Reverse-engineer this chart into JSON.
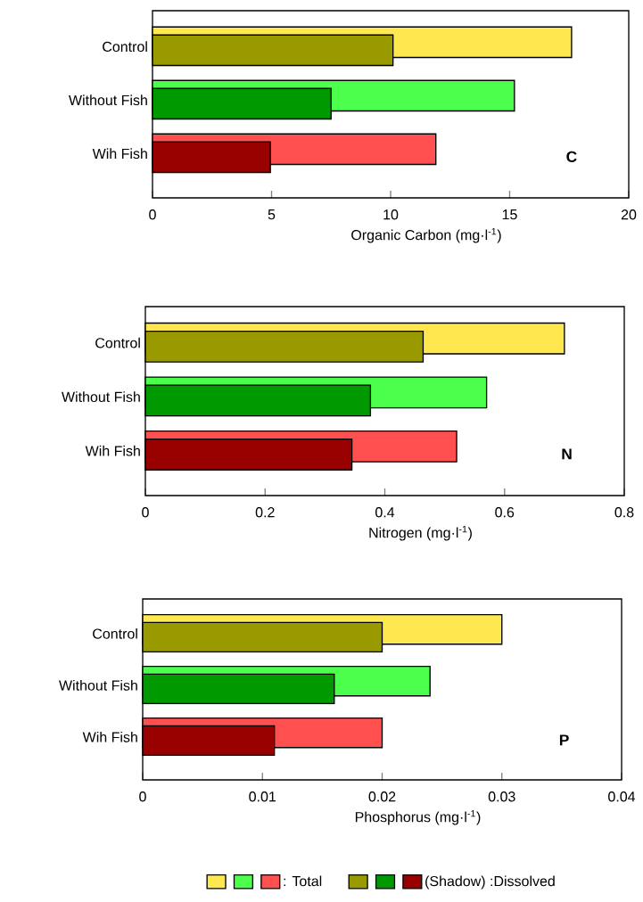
{
  "chart_data": [
    {
      "type": "bar",
      "orientation": "horizontal",
      "categories": [
        "Control",
        "Without Fish",
        "Wih Fish"
      ],
      "xlabel": "Organic Carbon  (mg·l$^{-1}$)",
      "xlim": [
        0,
        20
      ],
      "xticks": [
        0,
        5,
        10,
        15,
        20
      ],
      "annotations": [
        "C"
      ],
      "series": [
        {
          "colors": [
            "#ffe84f",
            "#4dff4d",
            "#ff4f4f"
          ],
          "values": [
            17.6,
            15.2,
            11.9
          ]
        },
        {
          "colors": [
            "#999900",
            "#009900",
            "#990000"
          ],
          "values": [
            10.1,
            7.5,
            4.95
          ]
        }
      ]
    },
    {
      "type": "bar",
      "orientation": "horizontal",
      "categories": [
        "Control",
        "Without Fish",
        "Wih Fish"
      ],
      "xlabel": "Nitrogen        (mg·l$^{-1}$)",
      "xlim": [
        0,
        0.8
      ],
      "xticks": [
        0,
        0.2,
        0.4,
        0.6,
        0.8
      ],
      "annotations": [
        "N"
      ],
      "series": [
        {
          "colors": [
            "#ffe84f",
            "#4dff4d",
            "#ff4f4f"
          ],
          "values": [
            0.7,
            0.57,
            0.52
          ]
        },
        {
          "colors": [
            "#999900",
            "#009900",
            "#990000"
          ],
          "values": [
            0.464,
            0.376,
            0.345
          ]
        }
      ]
    },
    {
      "type": "bar",
      "orientation": "horizontal",
      "categories": [
        "Control",
        "Without Fish",
        "Wih Fish"
      ],
      "xlabel": "Phosphorus  (mg·l$^{-1}$)",
      "xlim": [
        0,
        0.04
      ],
      "xticks": [
        0,
        0.01,
        0.02,
        0.03,
        0.04
      ],
      "annotations": [
        "P"
      ],
      "legend": "bottom",
      "series": [
        {
          "name": ": Total",
          "colors": [
            "#ffe84f",
            "#4dff4d",
            "#ff4f4f"
          ],
          "values": [
            0.03,
            0.024,
            0.02
          ]
        },
        {
          "name": "(Shadow) :Dissolved",
          "colors": [
            "#999900",
            "#009900",
            "#990000"
          ],
          "values": [
            0.02,
            0.016,
            0.011
          ]
        }
      ]
    }
  ]
}
